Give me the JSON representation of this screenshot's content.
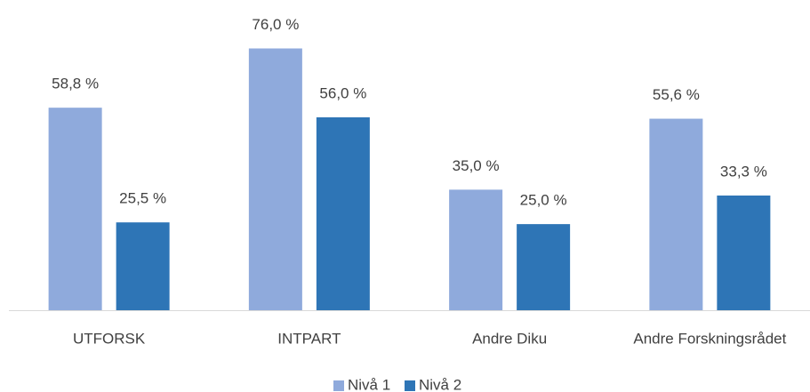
{
  "chart_data": {
    "type": "bar",
    "categories": [
      "UTFORSK",
      "INTPART",
      "Andre Diku",
      "Andre Forskningsrådet"
    ],
    "series": [
      {
        "name": "Nivå 1",
        "color": "#8faadc",
        "values": [
          58.8,
          76.0,
          35.0,
          55.6
        ],
        "value_labels": [
          "58,8 %",
          "76,0 %",
          "35,0 %",
          "55,6 %"
        ]
      },
      {
        "name": "Nivå 2",
        "color": "#2e75b6",
        "values": [
          25.5,
          56.0,
          25.0,
          33.3
        ],
        "value_labels": [
          "25,5 %",
          "56,0 %",
          "25,0 %",
          "33,3 %"
        ]
      }
    ],
    "ylim": [
      0,
      80
    ],
    "legend": "bottom"
  }
}
